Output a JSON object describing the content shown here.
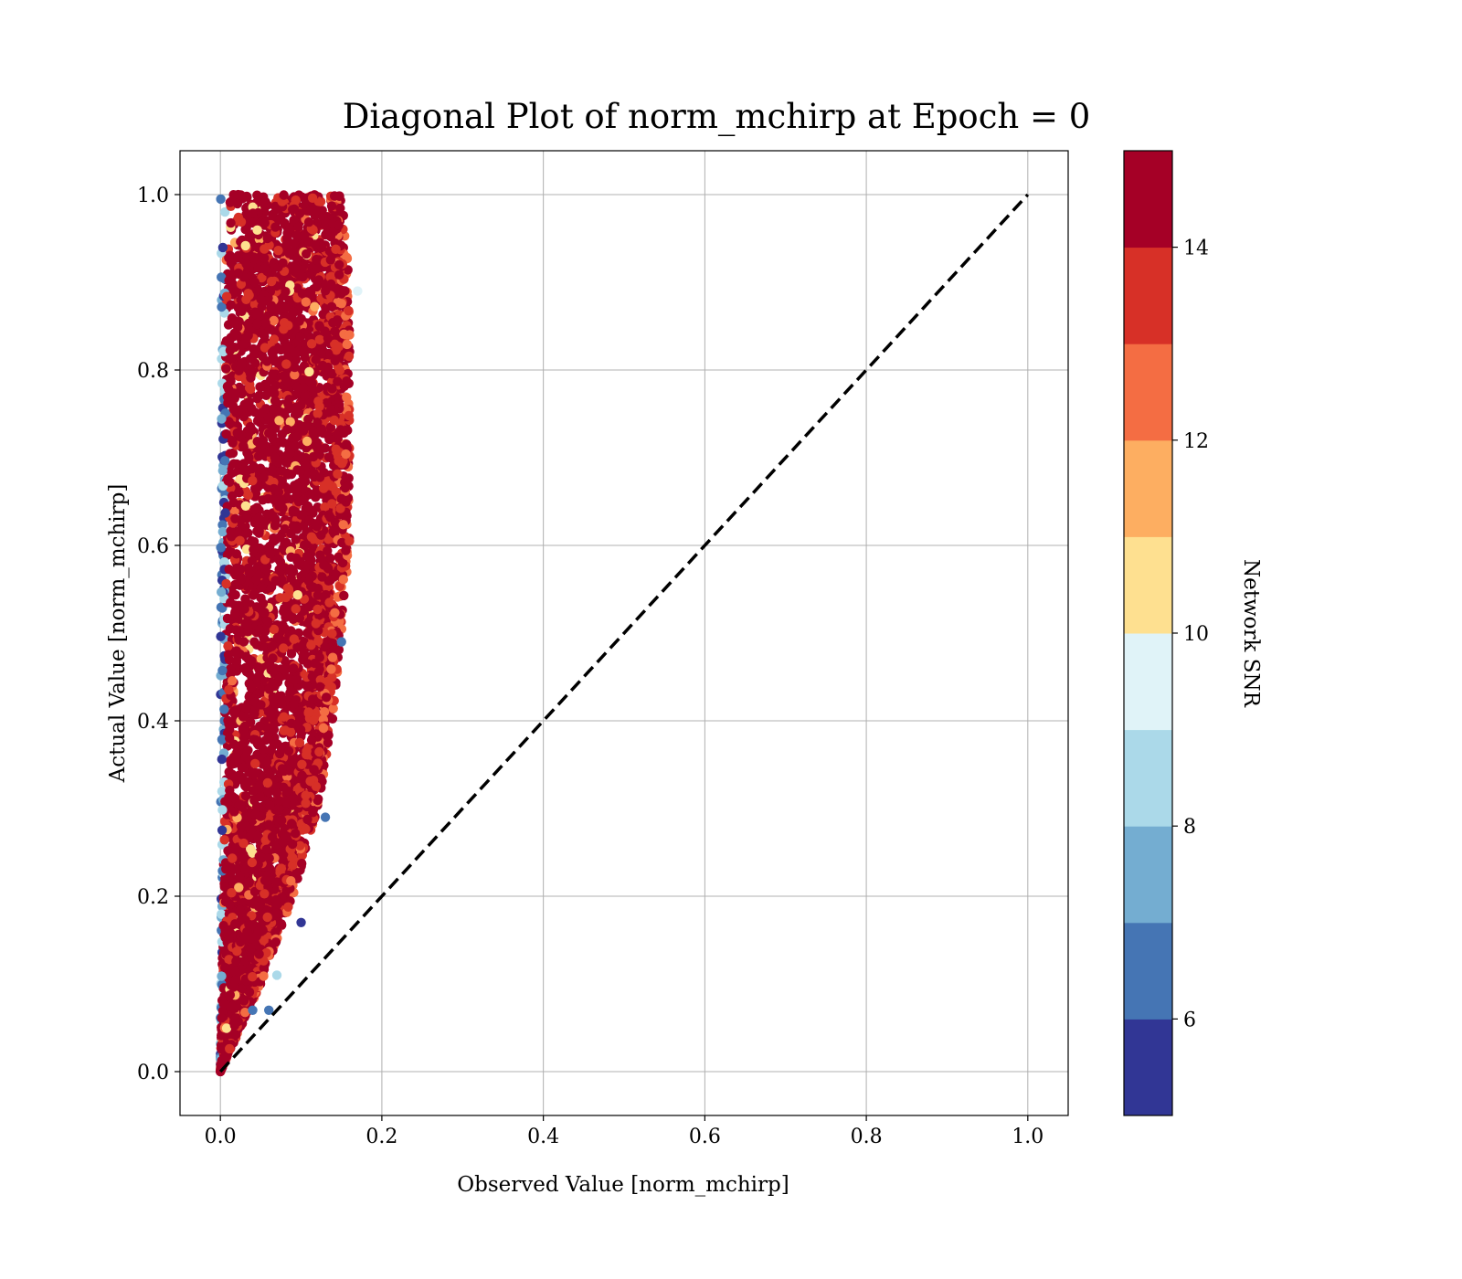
{
  "chart_data": {
    "type": "scatter",
    "title": "Diagonal Plot of norm_mchirp at Epoch = 0",
    "xlabel": "Observed Value [norm_mchirp]",
    "ylabel": "Actual Value [norm_mchirp]",
    "xlim": [
      -0.05,
      1.05
    ],
    "ylim": [
      -0.05,
      1.05
    ],
    "xticks": [
      0.0,
      0.2,
      0.4,
      0.6,
      0.8,
      1.0
    ],
    "yticks": [
      0.0,
      0.2,
      0.4,
      0.6,
      0.8,
      1.0
    ],
    "xtick_labels": [
      "0.0",
      "0.2",
      "0.4",
      "0.6",
      "0.8",
      "1.0"
    ],
    "ytick_labels": [
      "0.0",
      "0.2",
      "0.4",
      "0.6",
      "0.8",
      "1.0"
    ],
    "grid": true,
    "reference_line": {
      "x": [
        0.0,
        1.0
      ],
      "y": [
        0.0,
        1.0
      ],
      "style": "dashed",
      "color": "#000000"
    },
    "scatter_cloud": {
      "description_points": "dense cloud, observed value spans roughly 0.0 to 0.17 while actual value spans 0.0 to 1.0",
      "envelope": [
        {
          "y": 0.0,
          "x_min": 0.0,
          "x_max": 0.0
        },
        {
          "y": 0.1,
          "x_min": 0.0,
          "x_max": 0.05
        },
        {
          "y": 0.2,
          "x_min": 0.0,
          "x_max": 0.09
        },
        {
          "y": 0.3,
          "x_min": 0.0,
          "x_max": 0.12
        },
        {
          "y": 0.4,
          "x_min": 0.0,
          "x_max": 0.14
        },
        {
          "y": 0.5,
          "x_min": 0.0,
          "x_max": 0.15
        },
        {
          "y": 0.6,
          "x_min": 0.0,
          "x_max": 0.16
        },
        {
          "y": 0.7,
          "x_min": 0.0,
          "x_max": 0.16
        },
        {
          "y": 0.8,
          "x_min": 0.0,
          "x_max": 0.16
        },
        {
          "y": 0.9,
          "x_min": 0.0,
          "x_max": 0.16
        },
        {
          "y": 1.0,
          "x_min": 0.0,
          "x_max": 0.15
        }
      ],
      "outliers": [
        {
          "x": 0.13,
          "y": 0.29
        },
        {
          "x": 0.15,
          "y": 0.49
        },
        {
          "x": 0.07,
          "y": 0.11
        },
        {
          "x": 0.06,
          "y": 0.07
        },
        {
          "x": 0.04,
          "y": 0.07
        },
        {
          "x": 0.1,
          "y": 0.17
        },
        {
          "x": 0.17,
          "y": 0.89
        },
        {
          "x": 0.16,
          "y": 0.84
        }
      ]
    },
    "colorbar": {
      "label": "Network SNR",
      "vmin": 5,
      "vmax": 15,
      "ticks": [
        6,
        8,
        10,
        12,
        14
      ],
      "tick_labels": [
        "6",
        "8",
        "10",
        "12",
        "14"
      ],
      "colors": [
        "#313695",
        "#4575b4",
        "#74add1",
        "#abd9e9",
        "#e0f3f8",
        "#fee090",
        "#fdae61",
        "#f46d43",
        "#d73027",
        "#a50026"
      ]
    }
  }
}
